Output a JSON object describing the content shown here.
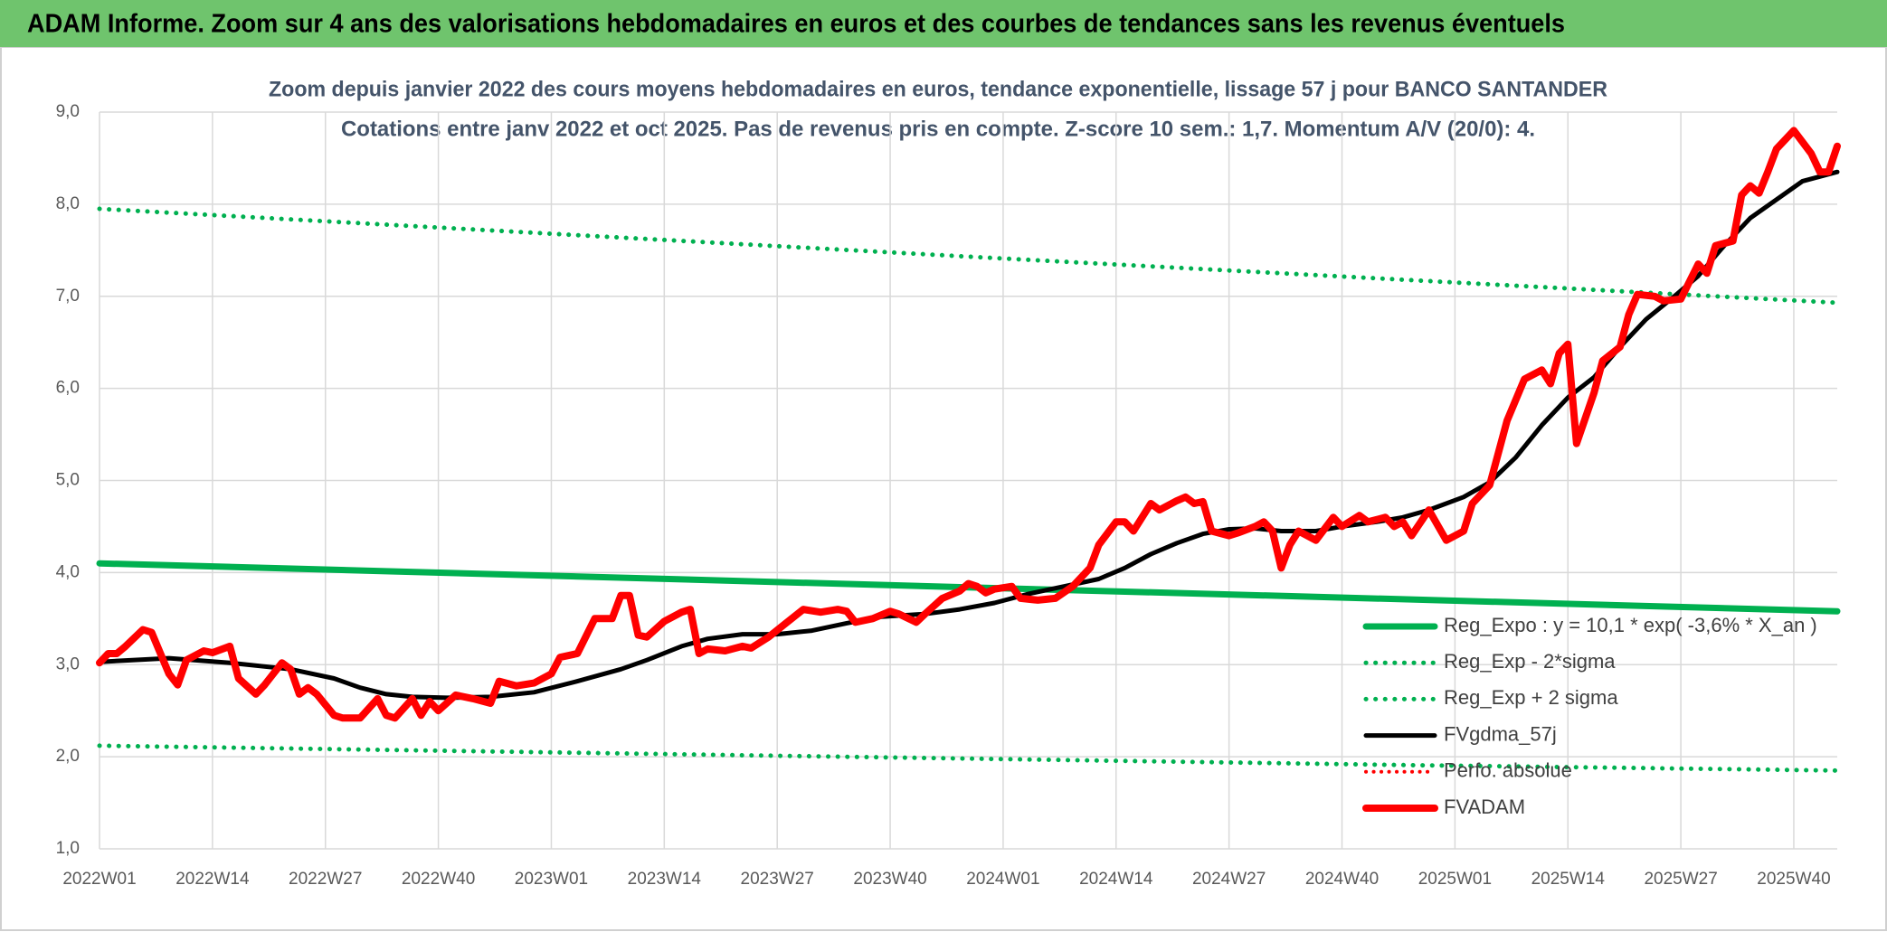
{
  "chart_data": {
    "type": "line",
    "title": "ADAM Informe. Zoom sur 4 ans des valorisations hebdomadaires en euros et des courbes de tendances sans les revenus éventuels",
    "subtitle": [
      "Zoom depuis janvier 2022 des cours moyens hebdomadaires en euros, tendance exponentielle, lissage 57 j pour BANCO SANTANDER",
      "Cotations entre janv 2022 et oct 2025. Pas de revenus pris en compte. Z-score 10 sem.: 1,7. Momentum A/V (20/0): 4."
    ],
    "xlim": [
      0,
      200
    ],
    "xticks": [
      {
        "value": 0,
        "label": "2022W01"
      },
      {
        "value": 13,
        "label": "2022W14"
      },
      {
        "value": 26,
        "label": "2022W27"
      },
      {
        "value": 39,
        "label": "2022W40"
      },
      {
        "value": 52,
        "label": "2023W01"
      },
      {
        "value": 65,
        "label": "2023W14"
      },
      {
        "value": 78,
        "label": "2023W27"
      },
      {
        "value": 91,
        "label": "2023W40"
      },
      {
        "value": 104,
        "label": "2024W01"
      },
      {
        "value": 117,
        "label": "2024W14"
      },
      {
        "value": 130,
        "label": "2024W27"
      },
      {
        "value": 143,
        "label": "2024W40"
      },
      {
        "value": 156,
        "label": "2025W01"
      },
      {
        "value": 169,
        "label": "2025W14"
      },
      {
        "value": 182,
        "label": "2025W27"
      },
      {
        "value": 195,
        "label": "2025W40"
      }
    ],
    "ylim": [
      1,
      9
    ],
    "yticks": [
      {
        "value": 1,
        "label": "1,0"
      },
      {
        "value": 2,
        "label": "2,0"
      },
      {
        "value": 3,
        "label": "3,0"
      },
      {
        "value": 4,
        "label": "4,0"
      },
      {
        "value": 5,
        "label": "5,0"
      },
      {
        "value": 6,
        "label": "6,0"
      },
      {
        "value": 7,
        "label": "7,0"
      },
      {
        "value": 8,
        "label": "8,0"
      },
      {
        "value": 9,
        "label": "9,0"
      }
    ],
    "grid": true,
    "legend": "lower right",
    "series": [
      {
        "name": "Reg_Expo : y = 10,1 * exp( -3,6% *  X_an )",
        "color": "#00b050",
        "style": "solid",
        "x": [
          0,
          50,
          100,
          150,
          200
        ],
        "values": [
          4.1,
          3.97,
          3.84,
          3.71,
          3.58
        ]
      },
      {
        "name": "Reg_Exp - 2*sigma",
        "color": "#00b050",
        "style": "dotted",
        "x": [
          0,
          50,
          100,
          150,
          200
        ],
        "values": [
          2.12,
          2.05,
          1.98,
          1.91,
          1.85
        ]
      },
      {
        "name": "Reg_Exp + 2 sigma",
        "color": "#00b050",
        "style": "dotted",
        "x": [
          0,
          50,
          100,
          150,
          200
        ],
        "values": [
          7.95,
          7.69,
          7.43,
          7.18,
          6.93
        ]
      },
      {
        "name": "FVgdma_57j",
        "color": "#000000",
        "style": "solid",
        "x": [
          0,
          8,
          15,
          22,
          27,
          30,
          33,
          36,
          40,
          45,
          50,
          55,
          60,
          63,
          67,
          70,
          74,
          78,
          82,
          86,
          90,
          95,
          99,
          103,
          107,
          111,
          115,
          118,
          121,
          124,
          127,
          130,
          133,
          136,
          140,
          143,
          147,
          150,
          153,
          157,
          160,
          163,
          166,
          169,
          172,
          175,
          178,
          181,
          184,
          187,
          190,
          193,
          196,
          200
        ],
        "values": [
          3.03,
          3.07,
          3.02,
          2.95,
          2.85,
          2.75,
          2.68,
          2.65,
          2.64,
          2.65,
          2.7,
          2.82,
          2.95,
          3.05,
          3.2,
          3.28,
          3.33,
          3.33,
          3.37,
          3.45,
          3.52,
          3.55,
          3.6,
          3.67,
          3.77,
          3.85,
          3.93,
          4.05,
          4.2,
          4.32,
          4.42,
          4.47,
          4.48,
          4.45,
          4.45,
          4.5,
          4.55,
          4.6,
          4.68,
          4.82,
          4.98,
          5.25,
          5.6,
          5.9,
          6.12,
          6.45,
          6.75,
          6.98,
          7.22,
          7.55,
          7.85,
          8.05,
          8.25,
          8.35
        ]
      },
      {
        "name": "Perfo. absolue",
        "color": "#ff0000",
        "style": "dotted",
        "x": [],
        "values": []
      },
      {
        "name": "FVADAM",
        "color": "#ff0000",
        "style": "solid",
        "x": [
          0,
          1,
          2,
          3,
          5,
          6,
          8,
          9,
          10,
          12,
          13,
          15,
          16,
          18,
          19,
          21,
          22,
          23,
          24,
          25,
          27,
          28,
          30,
          32,
          33,
          34,
          36,
          37,
          38,
          39,
          41,
          43,
          45,
          46,
          48,
          50,
          52,
          53,
          55,
          57,
          59,
          60,
          61,
          62,
          63,
          65,
          67,
          68,
          69,
          70,
          72,
          74,
          75,
          77,
          79,
          81,
          83,
          85,
          86,
          87,
          89,
          91,
          92,
          94,
          95,
          97,
          99,
          100,
          101,
          102,
          103,
          105,
          106,
          108,
          110,
          112,
          114,
          115,
          117,
          118,
          119,
          121,
          122,
          124,
          125,
          126,
          127,
          128,
          130,
          131,
          133,
          134,
          135,
          136,
          137,
          138,
          140,
          142,
          143,
          145,
          146,
          148,
          149,
          150,
          151,
          153,
          155,
          157,
          158,
          160,
          162,
          164,
          166,
          167,
          168,
          169,
          170,
          172,
          173,
          175,
          176,
          177,
          179,
          180,
          182,
          184,
          185,
          186,
          188,
          189,
          190,
          191,
          192,
          193,
          195,
          197,
          198,
          199,
          200
        ],
        "values": [
          3.02,
          3.12,
          3.12,
          3.2,
          3.38,
          3.35,
          2.9,
          2.78,
          3.05,
          3.15,
          3.13,
          3.2,
          2.85,
          2.68,
          2.78,
          3.02,
          2.95,
          2.68,
          2.75,
          2.68,
          2.45,
          2.42,
          2.42,
          2.63,
          2.45,
          2.42,
          2.63,
          2.45,
          2.6,
          2.5,
          2.67,
          2.63,
          2.58,
          2.82,
          2.77,
          2.8,
          2.9,
          3.08,
          3.12,
          3.5,
          3.5,
          3.75,
          3.75,
          3.32,
          3.3,
          3.47,
          3.57,
          3.6,
          3.12,
          3.17,
          3.15,
          3.2,
          3.18,
          3.3,
          3.45,
          3.6,
          3.57,
          3.6,
          3.58,
          3.46,
          3.5,
          3.58,
          3.55,
          3.46,
          3.55,
          3.72,
          3.8,
          3.88,
          3.85,
          3.78,
          3.82,
          3.85,
          3.72,
          3.7,
          3.72,
          3.85,
          4.05,
          4.3,
          4.55,
          4.55,
          4.45,
          4.75,
          4.68,
          4.78,
          4.82,
          4.75,
          4.77,
          4.45,
          4.4,
          4.43,
          4.5,
          4.55,
          4.45,
          4.05,
          4.3,
          4.45,
          4.35,
          4.6,
          4.5,
          4.62,
          4.55,
          4.6,
          4.5,
          4.55,
          4.4,
          4.68,
          4.35,
          4.45,
          4.75,
          4.95,
          5.65,
          6.1,
          6.2,
          6.05,
          6.38,
          6.48,
          5.4,
          5.95,
          6.3,
          6.45,
          6.8,
          7.02,
          7.0,
          6.95,
          6.97,
          7.35,
          7.25,
          7.55,
          7.6,
          8.1,
          8.2,
          8.12,
          8.35,
          8.6,
          8.8,
          8.55,
          8.35,
          8.35,
          8.63
        ]
      }
    ]
  }
}
